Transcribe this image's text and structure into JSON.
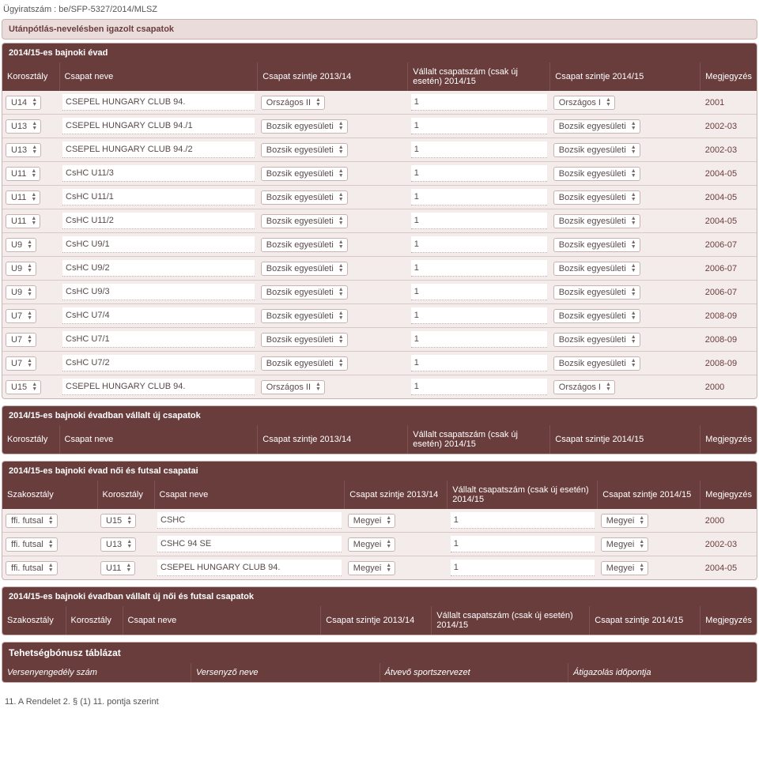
{
  "doc_id": "Ügyiratszám : be/SFP-5327/2014/MLSZ",
  "title1": "Utánpótlás-nevelésben igazolt csapatok",
  "sec1": {
    "header": "2014/15-es bajnoki évad",
    "cols": {
      "koro": "Korosztály",
      "neve": "Csapat neve",
      "sz13": "Csapat szintje 2013/14",
      "vallalt": "Vállalt csapatszám (csak új esetén) 2014/15",
      "sz14": "Csapat szintje 2014/15",
      "megj": "Megjegyzés"
    },
    "rows": [
      {
        "koro": "U14",
        "neve": "CSEPEL HUNGARY CLUB 94.",
        "sz13": "Országos II",
        "vall": "1",
        "sz14": "Országos I",
        "megj": "2001"
      },
      {
        "koro": "U13",
        "neve": "CSEPEL HUNGARY CLUB 94./1",
        "sz13": "Bozsik egyesületi",
        "vall": "1",
        "sz14": "Bozsik egyesületi",
        "megj": "2002-03"
      },
      {
        "koro": "U13",
        "neve": "CSEPEL HUNGARY CLUB 94./2",
        "sz13": "Bozsik egyesületi",
        "vall": "1",
        "sz14": "Bozsik egyesületi",
        "megj": "2002-03"
      },
      {
        "koro": "U11",
        "neve": "CsHC U11/3",
        "sz13": "Bozsik egyesületi",
        "vall": "1",
        "sz14": "Bozsik egyesületi",
        "megj": "2004-05"
      },
      {
        "koro": "U11",
        "neve": "CsHC U11/1",
        "sz13": "Bozsik egyesületi",
        "vall": "1",
        "sz14": "Bozsik egyesületi",
        "megj": "2004-05"
      },
      {
        "koro": "U11",
        "neve": "CsHC U11/2",
        "sz13": "Bozsik egyesületi",
        "vall": "1",
        "sz14": "Bozsik egyesületi",
        "megj": "2004-05"
      },
      {
        "koro": "U9",
        "neve": "CsHC U9/1",
        "sz13": "Bozsik egyesületi",
        "vall": "1",
        "sz14": "Bozsik egyesületi",
        "megj": "2006-07"
      },
      {
        "koro": "U9",
        "neve": "CsHC U9/2",
        "sz13": "Bozsik egyesületi",
        "vall": "1",
        "sz14": "Bozsik egyesületi",
        "megj": "2006-07"
      },
      {
        "koro": "U9",
        "neve": "CsHC U9/3",
        "sz13": "Bozsik egyesületi",
        "vall": "1",
        "sz14": "Bozsik egyesületi",
        "megj": "2006-07"
      },
      {
        "koro": "U7",
        "neve": "CsHC U7/4",
        "sz13": "Bozsik egyesületi",
        "vall": "1",
        "sz14": "Bozsik egyesületi",
        "megj": "2008-09"
      },
      {
        "koro": "U7",
        "neve": "CsHC U7/1",
        "sz13": "Bozsik egyesületi",
        "vall": "1",
        "sz14": "Bozsik egyesületi",
        "megj": "2008-09"
      },
      {
        "koro": "U7",
        "neve": "CsHC U7/2",
        "sz13": "Bozsik egyesületi",
        "vall": "1",
        "sz14": "Bozsik egyesületi",
        "megj": "2008-09"
      },
      {
        "koro": "U15",
        "neve": "CSEPEL HUNGARY CLUB 94.",
        "sz13": "Országos II",
        "vall": "1",
        "sz14": "Országos I",
        "megj": "2000"
      }
    ]
  },
  "sec2": {
    "header": "2014/15-es bajnoki évadban vállalt új csapatok",
    "cols": {
      "koro": "Korosztály",
      "neve": "Csapat neve",
      "sz13": "Csapat szintje 2013/14",
      "vallalt": "Vállalt csapatszám (csak új esetén) 2014/15",
      "sz14": "Csapat szintje 2014/15",
      "megj": "Megjegyzés"
    }
  },
  "sec3": {
    "header": "2014/15-es bajnoki évad női és futsal csapatai",
    "cols": {
      "szak": "Szakosztály",
      "koro": "Korosztály",
      "neve": "Csapat neve",
      "sz13": "Csapat szintje 2013/14",
      "vallalt": "Vállalt csapatszám (csak új esetén) 2014/15",
      "sz14": "Csapat szintje 2014/15",
      "megj": "Megjegyzés"
    },
    "rows": [
      {
        "szak": "ffi. futsal",
        "koro": "U15",
        "neve": "CSHC",
        "sz13": "Megyei",
        "vall": "1",
        "sz14": "Megyei",
        "megj": "2000"
      },
      {
        "szak": "ffi. futsal",
        "koro": "U13",
        "neve": "CSHC 94 SE",
        "sz13": "Megyei",
        "vall": "1",
        "sz14": "Megyei",
        "megj": "2002-03"
      },
      {
        "szak": "ffi. futsal",
        "koro": "U11",
        "neve": "CSEPEL HUNGARY CLUB 94.",
        "sz13": "Megyei",
        "vall": "1",
        "sz14": "Megyei",
        "megj": "2004-05"
      }
    ]
  },
  "sec4": {
    "header": "2014/15-es bajnoki évadban vállalt új női és futsal csapatok",
    "cols": {
      "szak": "Szakosztály",
      "koro": "Korosztály",
      "neve": "Csapat neve",
      "sz13": "Csapat szintje 2013/14",
      "vallalt": "Vállalt csapatszám (csak új esetén) 2014/15",
      "sz14": "Csapat szintje 2014/15",
      "megj": "Megjegyzés"
    }
  },
  "sec5": {
    "header": "Tehetségbónusz táblázat",
    "cols": {
      "c1": "Versenyengedély szám",
      "c2": "Versenyző neve",
      "c3": "Átvevő sportszervezet",
      "c4": "Átigazolás időpontja"
    }
  },
  "footnote": "11. A Rendelet 2. § (1) 11. pontja szerint"
}
